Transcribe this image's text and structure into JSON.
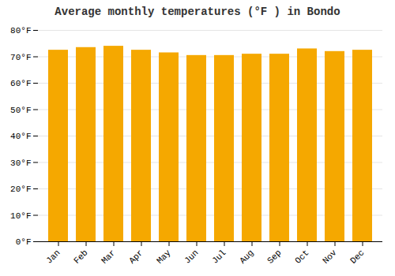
{
  "chart_data": {
    "type": "bar",
    "title": "Average monthly temperatures (°F ) in Bondo",
    "categories": [
      "Jan",
      "Feb",
      "Mar",
      "Apr",
      "May",
      "Jun",
      "Jul",
      "Aug",
      "Sep",
      "Oct",
      "Nov",
      "Dec"
    ],
    "values": [
      72.5,
      73.5,
      74.0,
      72.5,
      71.5,
      70.5,
      70.5,
      71.0,
      71.0,
      73.0,
      72.0,
      72.5
    ],
    "color": "#F5A800",
    "ylim": [
      0,
      80
    ],
    "yticks": [
      {
        "value": 0,
        "label": "0°F"
      },
      {
        "value": 10,
        "label": "10°F"
      },
      {
        "value": 20,
        "label": "20°F"
      },
      {
        "value": 30,
        "label": "30°F"
      },
      {
        "value": 40,
        "label": "40°F"
      },
      {
        "value": 50,
        "label": "50°F"
      },
      {
        "value": 60,
        "label": "60°F"
      },
      {
        "value": 70,
        "label": "70°F"
      },
      {
        "value": 80,
        "label": "80°F"
      }
    ],
    "grid": true
  }
}
